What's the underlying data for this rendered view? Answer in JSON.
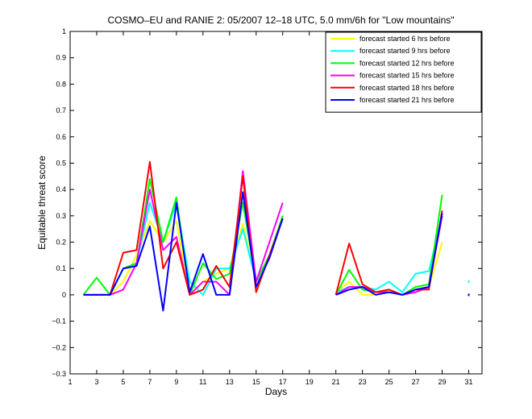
{
  "chart_data": {
    "type": "line",
    "title": "COSMO–EU and RANIE 2: 05/2007 12–18 UTC, 5.0 mm/6h for \"Low mountains\"",
    "xlabel": "Days",
    "ylabel": "Equitable threat score",
    "xlim": [
      1,
      32
    ],
    "ylim": [
      -0.3,
      1
    ],
    "xticks": [
      1,
      3,
      5,
      7,
      9,
      11,
      13,
      15,
      17,
      19,
      21,
      23,
      25,
      27,
      29,
      31
    ],
    "yticks": [
      -0.3,
      -0.2,
      -0.1,
      0,
      0.1,
      0.2,
      0.3,
      0.4,
      0.5,
      0.6,
      0.7,
      0.8,
      0.9,
      1
    ],
    "ytick_labels": [
      "−0.3",
      "−0.2",
      "−0.1",
      "0",
      "0.1",
      "0.2",
      "0.3",
      "0.4",
      "0.5",
      "0.6",
      "0.7",
      "0.8",
      "0.9",
      "1"
    ],
    "x": [
      1,
      2,
      3,
      4,
      5,
      6,
      7,
      8,
      9,
      10,
      11,
      12,
      13,
      14,
      15,
      16,
      17,
      18,
      19,
      20,
      21,
      22,
      23,
      24,
      25,
      26,
      27,
      28,
      29,
      30,
      31
    ],
    "grid": false,
    "legend_position": "top-right",
    "series": [
      {
        "name": "forecast started 6 hrs before",
        "color": "#ffff00",
        "values": [
          null,
          0,
          0,
          0,
          0.05,
          0.15,
          0.28,
          0.2,
          0.28,
          0,
          0.05,
          0.08,
          0.1,
          0.27,
          0.05,
          0.15,
          0.3,
          null,
          null,
          null,
          0.01,
          0.05,
          0,
          0,
          0.02,
          0,
          0.02,
          0.03,
          0.2,
          null,
          null
        ]
      },
      {
        "name": "forecast started 9 hrs before",
        "color": "#00ffff",
        "values": [
          null,
          0,
          0,
          0,
          0.1,
          0.12,
          0.35,
          0.2,
          0.35,
          0.05,
          0,
          0.1,
          0.1,
          0.25,
          0.05,
          0.15,
          0.3,
          null,
          null,
          null,
          0.01,
          0.03,
          0.03,
          0.02,
          0.05,
          0.01,
          0.08,
          0.09,
          0.3,
          null,
          0.05
        ]
      },
      {
        "name": "forecast started 12 hrs before",
        "color": "#00ff00",
        "values": [
          null,
          0,
          0.065,
          0,
          0.1,
          0.12,
          0.44,
          0.2,
          0.37,
          0,
          0.12,
          0.06,
          0.08,
          0.35,
          0.05,
          0.15,
          0.3,
          null,
          null,
          null,
          0,
          0.095,
          0.02,
          0.01,
          0.02,
          0,
          0.03,
          0.04,
          0.38,
          null,
          null
        ]
      },
      {
        "name": "forecast started 15 hrs before",
        "color": "#ff00ff",
        "values": [
          null,
          0,
          0,
          0,
          0.02,
          0.12,
          0.4,
          0.17,
          0.22,
          0,
          0.05,
          0.05,
          0,
          0.47,
          0.05,
          0.2,
          0.35,
          null,
          null,
          null,
          0,
          0.03,
          0.03,
          0.01,
          0.01,
          0,
          0.01,
          0.03,
          0.3,
          null,
          null
        ]
      },
      {
        "name": "forecast started 18 hrs before",
        "color": "#ff0000",
        "values": [
          null,
          0,
          0,
          0,
          0.16,
          0.17,
          0.505,
          0.1,
          0.2,
          0,
          0.02,
          0.11,
          0.03,
          0.45,
          0.01,
          0.15,
          0.29,
          null,
          null,
          null,
          0,
          0.195,
          0.04,
          0.01,
          0.02,
          0,
          0.02,
          0.02,
          0.32,
          null,
          null
        ]
      },
      {
        "name": "forecast started 21 hrs before",
        "color": "#0000ff",
        "values": [
          null,
          0,
          0,
          0,
          0.1,
          0.11,
          0.26,
          -0.06,
          0.35,
          0.01,
          0.155,
          0,
          0,
          0.39,
          0.03,
          0.14,
          0.29,
          null,
          null,
          null,
          0,
          0.02,
          0.03,
          0,
          0.01,
          0,
          0.02,
          0.03,
          0.31,
          null,
          0
        ]
      }
    ]
  }
}
